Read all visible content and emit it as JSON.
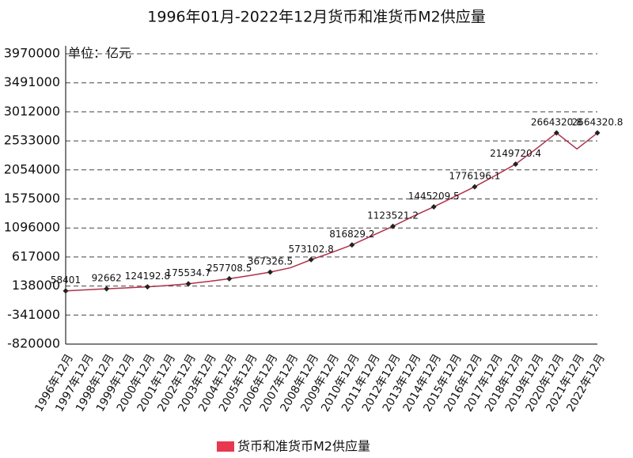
{
  "chart_data": {
    "type": "line",
    "title": "1996年01月-2022年12月货币和准货币M2供应量",
    "unit_label": "单位：亿元",
    "categories": [
      "1996年12月",
      "1997年12月",
      "1998年12月",
      "1999年12月",
      "2000年12月",
      "2001年12月",
      "2002年12月",
      "2003年12月",
      "2004年12月",
      "2005年12月",
      "2006年12月",
      "2007年12月",
      "2008年12月",
      "2009年12月",
      "2010年12月",
      "2011年12月",
      "2012年12月",
      "2013年12月",
      "2014年12月",
      "2015年12月",
      "2016年12月",
      "2017年12月",
      "2018年12月",
      "2019年12月",
      "2020年12月",
      "2021年12月",
      "2022年12月"
    ],
    "series": [
      {
        "name": "货币和准货币M2供应量",
        "color": "#b0304a",
        "values": [
          58401,
          76000,
          92662,
          108000,
          124192.8,
          148000,
          175534.7,
          215000,
          257708.5,
          310000,
          367326.5,
          440000,
          573102.8,
          690000,
          816829.2,
          970000,
          1123521.2,
          1290000,
          1445209.5,
          1610000,
          1776196.1,
          1960000,
          2149720.4,
          2400000,
          2664320.8,
          2400000,
          2664320.8
        ]
      }
    ],
    "ylim": [
      -820000,
      3970000
    ],
    "yticks": [
      -820000,
      -341000,
      138000,
      617000,
      1096000,
      1575000,
      2054000,
      2533000,
      3012000,
      3491000,
      3970000
    ],
    "grid": true
  }
}
